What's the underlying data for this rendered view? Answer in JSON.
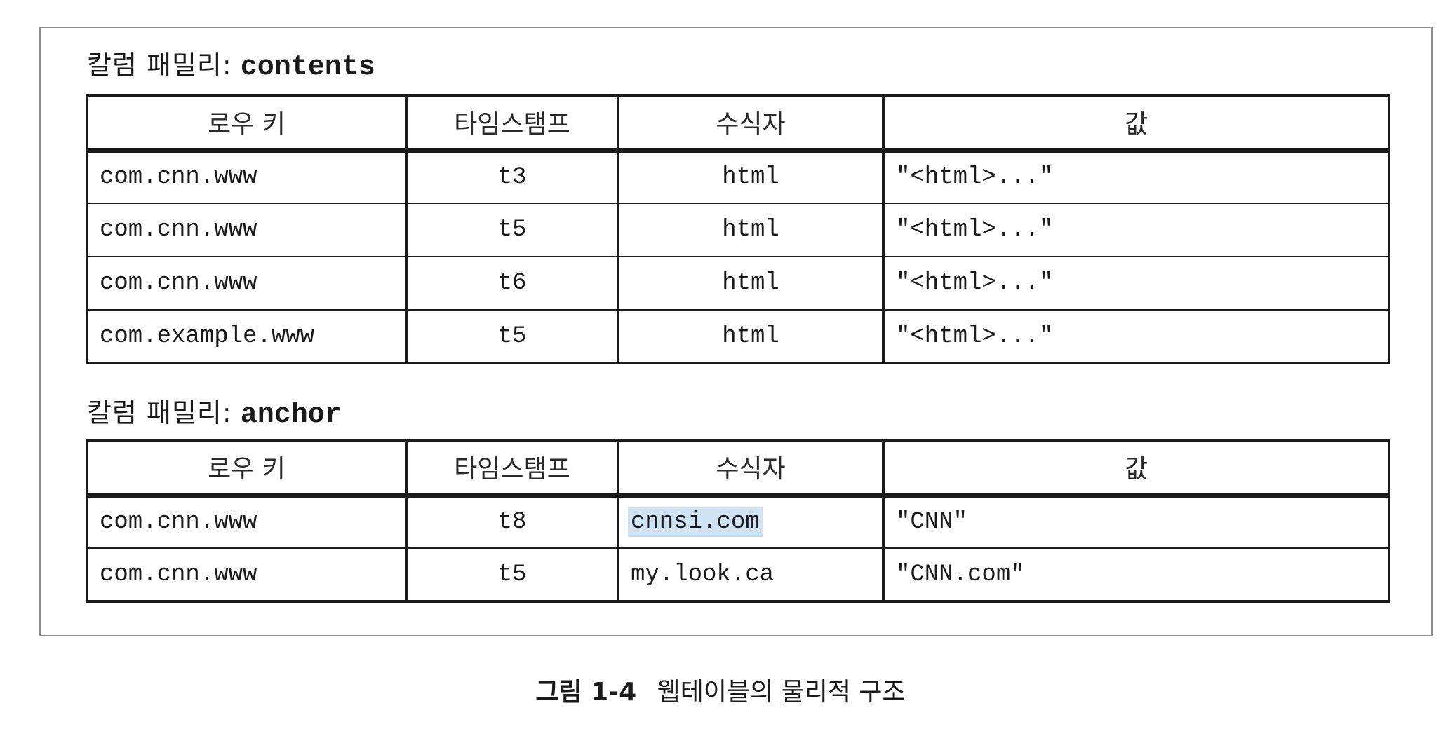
{
  "figure": {
    "sections": [
      {
        "label_prefix": "칼럼 패밀리:",
        "family_name": "contents",
        "headers": [
          "로우 키",
          "타임스탬프",
          "수식자",
          "값"
        ],
        "rows": [
          {
            "row_key": "com.cnn.www",
            "timestamp": "t3",
            "qualifier": "html",
            "value": "\"<html>...\""
          },
          {
            "row_key": "com.cnn.www",
            "timestamp": "t5",
            "qualifier": "html",
            "value": "\"<html>...\""
          },
          {
            "row_key": "com.cnn.www",
            "timestamp": "t6",
            "qualifier": "html",
            "value": "\"<html>...\""
          },
          {
            "row_key": "com.example.www",
            "timestamp": "t5",
            "qualifier": "html",
            "value": "\"<html>...\""
          }
        ]
      },
      {
        "label_prefix": "칼럼 패밀리:",
        "family_name": "anchor",
        "headers": [
          "로우 키",
          "타임스탬프",
          "수식자",
          "값"
        ],
        "rows": [
          {
            "row_key": "com.cnn.www",
            "timestamp": "t8",
            "qualifier": "cnnsi.com",
            "value": "\"CNN\""
          },
          {
            "row_key": "com.cnn.www",
            "timestamp": "t5",
            "qualifier": "my.look.ca",
            "value": "\"CNN.com\""
          }
        ]
      }
    ],
    "caption": {
      "number": "그림 1-4",
      "text": "웹테이블의 물리적 구조"
    }
  },
  "colors": {
    "border": "#1a1a1a",
    "frame": "#8c8c8c",
    "selection_highlight": "#cfe3f5"
  }
}
